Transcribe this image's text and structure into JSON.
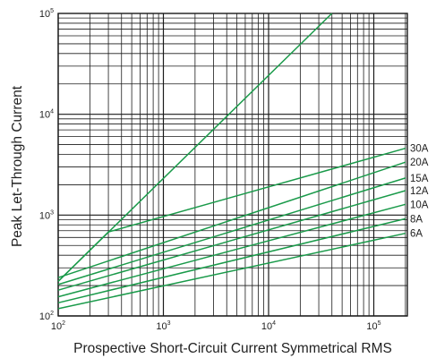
{
  "chart_data": {
    "type": "line",
    "title": "",
    "xlabel": "Prospective Short-Circuit Current Symmetrical RMS",
    "ylabel": "Peak Let-Through Current",
    "xscale": "log",
    "yscale": "log",
    "xlim": [
      100,
      200000
    ],
    "ylim": [
      100,
      100000
    ],
    "grid": true,
    "legend": "none (series labeled at right end of lines)",
    "x_tick_labels": [
      {
        "base": "10",
        "exp": "2"
      },
      {
        "base": "10",
        "exp": "3"
      },
      {
        "base": "10",
        "exp": "4"
      },
      {
        "base": "10",
        "exp": "5"
      }
    ],
    "y_tick_labels": [
      {
        "base": "10",
        "exp": "2"
      },
      {
        "base": "10",
        "exp": "3"
      },
      {
        "base": "10",
        "exp": "4"
      },
      {
        "base": "10",
        "exp": "5"
      }
    ],
    "line_color": "#1a9a4a",
    "grid_color": "#1a1a1a",
    "max_peak_line": {
      "x": [
        100,
        40000
      ],
      "y": [
        220,
        100000
      ]
    },
    "series": [
      {
        "name": "30A",
        "x": [
          100,
          300,
          200000
        ],
        "y": [
          220,
          680,
          4600
        ]
      },
      {
        "name": "20A",
        "x": [
          100,
          200000
        ],
        "y": [
          240,
          3350
        ]
      },
      {
        "name": "15A",
        "x": [
          100,
          200000
        ],
        "y": [
          205,
          2330
        ]
      },
      {
        "name": "12A",
        "x": [
          100,
          200000
        ],
        "y": [
          180,
          1750
        ]
      },
      {
        "name": "10A",
        "x": [
          100,
          200000
        ],
        "y": [
          155,
          1280
        ]
      },
      {
        "name": "8A",
        "x": [
          100,
          200000
        ],
        "y": [
          135,
          920
        ]
      },
      {
        "name": "6A",
        "x": [
          100,
          200000
        ],
        "y": [
          118,
          660
        ]
      }
    ]
  }
}
